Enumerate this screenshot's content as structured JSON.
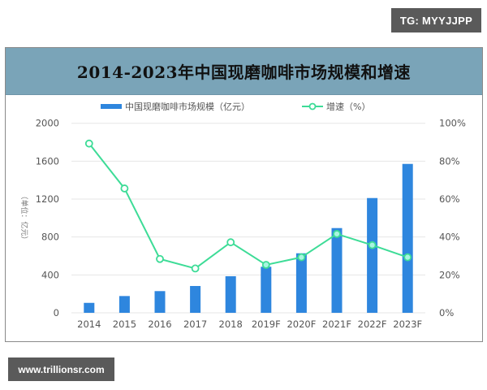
{
  "watermarks": {
    "top_right": "TG: MYYJJPP",
    "bottom_left": "www.trillionsr.com"
  },
  "colors": {
    "title_band": "#7aa4b8",
    "bar": "#2e86de",
    "line": "#3ddc97",
    "gridline": "#e6e6e6"
  },
  "chart_data": {
    "type": "bar+line",
    "title": "2014-2023年中国现磨咖啡市场规模和增速",
    "categories": [
      "2014",
      "2015",
      "2016",
      "2017",
      "2018",
      "2019F",
      "2020F",
      "2021F",
      "2022F",
      "2023F"
    ],
    "series": [
      {
        "name": "中国现磨咖啡市场规模（亿元）",
        "type": "bar",
        "axis": "left",
        "values": [
          105,
          177,
          229,
          283,
          386,
          486,
          628,
          894,
          1211,
          1571
        ]
      },
      {
        "name": "增速（%）",
        "type": "line",
        "axis": "right",
        "values": [
          89.3,
          65.6,
          28.4,
          23.4,
          37.2,
          25.3,
          29.3,
          41.6,
          35.7,
          29.3
        ]
      }
    ],
    "ylabel": "（单位：亿元）",
    "ylabel_right": "",
    "xlabel": "",
    "ylim": [
      0,
      2000
    ],
    "ylim_right": [
      0,
      100
    ],
    "yticks": [
      "0",
      "400",
      "800",
      "1200",
      "1600",
      "2000"
    ],
    "yticks_right": [
      "0%",
      "20%",
      "40%",
      "60%",
      "80%",
      "100%"
    ],
    "legend": [
      "中国现磨咖啡市场规模（亿元）",
      "增速（%）"
    ],
    "legend_position": "top",
    "grid": true
  }
}
